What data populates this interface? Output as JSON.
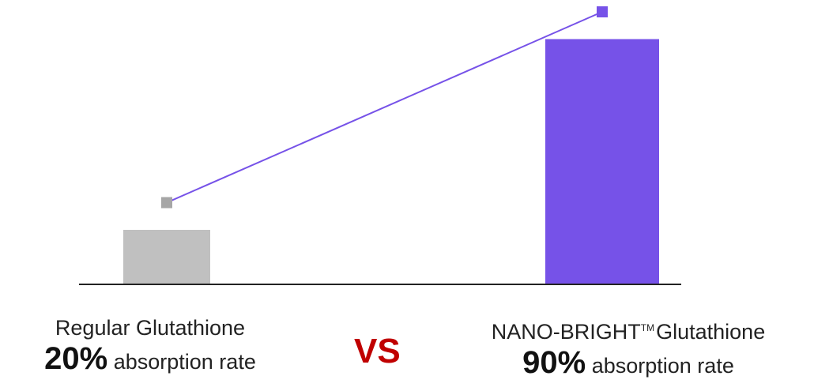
{
  "chart_data": {
    "type": "bar",
    "categories": [
      "Regular Glutathione",
      "NANO-BRIGHT™ Glutathione"
    ],
    "series": [
      {
        "values": [
          20,
          90
        ],
        "colors": [
          "#c0c0c0",
          "#7652e8"
        ]
      }
    ],
    "trend_markers": {
      "values": [
        30,
        100
      ],
      "colors": [
        "#a6a6a6",
        "#7652e8"
      ],
      "line_color": "#7652e8"
    },
    "ylim": [
      0,
      100
    ],
    "title": "",
    "xlabel": "",
    "ylabel": "",
    "grid": false
  },
  "labels": {
    "left": {
      "name": "Regular Glutathione",
      "rate_value": "20%",
      "rate_text": "absorption rate"
    },
    "right": {
      "name_prefix": "NANO-BRIGHT",
      "trademark": "TM",
      "name_suffix": "Glutathione",
      "rate_value": "90%",
      "rate_text": "absorption rate"
    },
    "vs": "VS"
  },
  "colors": {
    "vs": "#c00000",
    "axis": "#222222"
  }
}
